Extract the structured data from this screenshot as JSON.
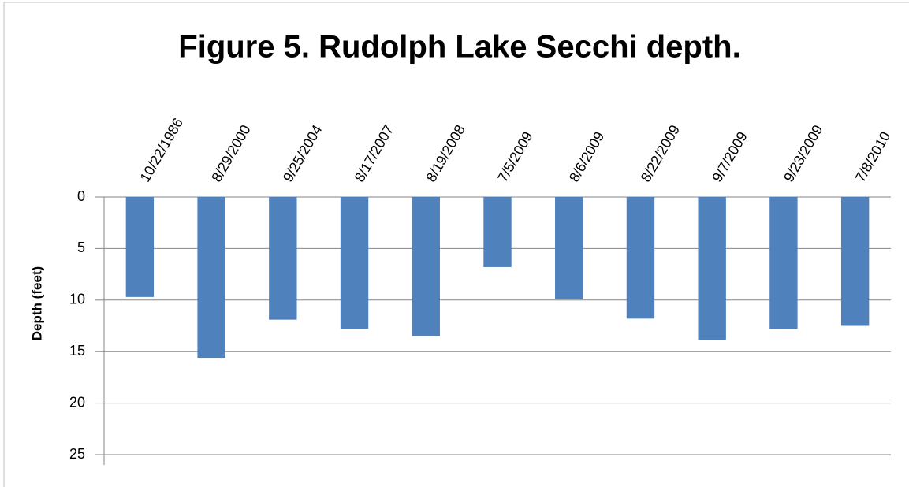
{
  "chart_data": {
    "type": "bar",
    "title": "Figure 5. Rudolph Lake Secchi depth.",
    "y_label": "Depth (feet)",
    "categories": [
      "10/22/1986",
      "8/29/2000",
      "9/25/2004",
      "8/17/2007",
      "8/19/2008",
      "7/5/2009",
      "8/6/2009",
      "8/22/2009",
      "9/7/2009",
      "9/23/2009",
      "7/8/2010"
    ],
    "values": [
      9.7,
      15.6,
      11.9,
      12.8,
      13.5,
      6.8,
      9.9,
      11.8,
      13.9,
      12.8,
      12.5
    ],
    "color": "#4f81bd",
    "ylim": [
      0,
      25
    ],
    "yticks": [
      0,
      5,
      10,
      15,
      20,
      25
    ],
    "y_inverted": true,
    "grid": true
  }
}
